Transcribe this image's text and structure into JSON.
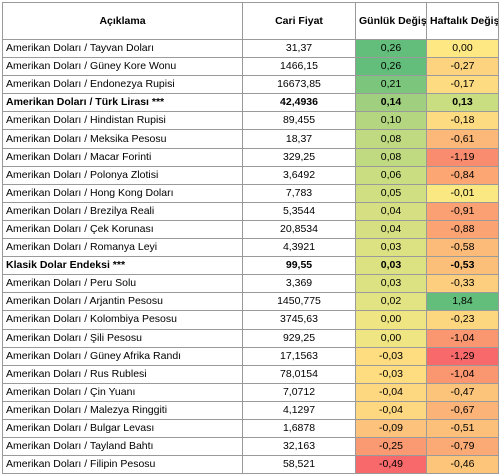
{
  "headers": [
    "Açıklama",
    "Cari Fiyat",
    "Günlük Değişim (%)",
    "Haftalık Değişim (%)"
  ],
  "rows": [
    {
      "name": "Amerikan Doları / Tayvan Doları",
      "price": "31,37",
      "daily": "0,26",
      "weekly": "0,00",
      "bold": false,
      "daily_color": "#63be7b",
      "weekly_color": "#fde883"
    },
    {
      "name": "Amerikan Doları / Güney Kore Wonu",
      "price": "1466,15",
      "daily": "0,26",
      "weekly": "-0,27",
      "bold": false,
      "daily_color": "#63be7b",
      "weekly_color": "#fdd37f"
    },
    {
      "name": "Amerikan Doları / Endonezya Rupisi",
      "price": "16673,85",
      "daily": "0,21",
      "weekly": "-0,17",
      "bold": false,
      "daily_color": "#7bc57d",
      "weekly_color": "#fddb81"
    },
    {
      "name": "Amerikan Doları / Türk Lirası ***",
      "price": "42,4936",
      "daily": "0,14",
      "weekly": "0,13",
      "bold": true,
      "daily_color": "#a0d07f",
      "weekly_color": "#c9dd81"
    },
    {
      "name": "Amerikan Doları / Hindistan Rupisi",
      "price": "89,455",
      "daily": "0,10",
      "weekly": "-0,18",
      "bold": false,
      "daily_color": "#b5d680",
      "weekly_color": "#fddb81"
    },
    {
      "name": "Amerikan Doları / Meksika Pesosu",
      "price": "18,37",
      "daily": "0,08",
      "weekly": "-0,61",
      "bold": false,
      "daily_color": "#c0da81",
      "weekly_color": "#fcb878"
    },
    {
      "name": "Amerikan Doları / Macar Forinti",
      "price": "329,25",
      "daily": "0,08",
      "weekly": "-1,19",
      "bold": false,
      "daily_color": "#c0da81",
      "weekly_color": "#f98b6e"
    },
    {
      "name": "Amerikan Doları / Polonya Zlotisi",
      "price": "3,6492",
      "daily": "0,06",
      "weekly": "-0,84",
      "bold": false,
      "daily_color": "#cadd81",
      "weekly_color": "#fba673"
    },
    {
      "name": "Amerikan Doları / Hong Kong Doları",
      "price": "7,783",
      "daily": "0,05",
      "weekly": "-0,01",
      "bold": false,
      "daily_color": "#d0df82",
      "weekly_color": "#fae883"
    },
    {
      "name": "Amerikan Doları / Brezilya Reali",
      "price": "5,3544",
      "daily": "0,04",
      "weekly": "-0,91",
      "bold": false,
      "daily_color": "#d6e082",
      "weekly_color": "#fba073"
    },
    {
      "name": "Amerikan Doları / Çek Korunası",
      "price": "20,8534",
      "daily": "0,04",
      "weekly": "-0,88",
      "bold": false,
      "daily_color": "#d6e082",
      "weekly_color": "#fba373"
    },
    {
      "name": "Amerikan Doları / Romanya Leyi",
      "price": "4,3921",
      "daily": "0,03",
      "weekly": "-0,58",
      "bold": false,
      "daily_color": "#dce182",
      "weekly_color": "#fcbb79"
    },
    {
      "name": "Klasik Dolar Endeksi ***",
      "price": "99,55",
      "daily": "0,03",
      "weekly": "-0,53",
      "bold": true,
      "daily_color": "#dce182",
      "weekly_color": "#fcbf79"
    },
    {
      "name": "Amerikan Doları / Peru Solu",
      "price": "3,369",
      "daily": "0,03",
      "weekly": "-0,33",
      "bold": false,
      "daily_color": "#dce182",
      "weekly_color": "#fdce7e"
    },
    {
      "name": "Amerikan Doları / Arjantin Pesosu",
      "price": "1450,775",
      "daily": "0,02",
      "weekly": "1,84",
      "bold": false,
      "daily_color": "#e2e382",
      "weekly_color": "#63be7b"
    },
    {
      "name": "Amerikan Doları / Kolombiya Pesosu",
      "price": "3745,63",
      "daily": "0,00",
      "weekly": "-0,23",
      "bold": false,
      "daily_color": "#efe683",
      "weekly_color": "#fdd680"
    },
    {
      "name": "Amerikan Doları / Şili Pesosu",
      "price": "929,25",
      "daily": "0,00",
      "weekly": "-1,04",
      "bold": false,
      "daily_color": "#efe683",
      "weekly_color": "#fa9770"
    },
    {
      "name": "Amerikan Doları / Güney Afrika Randı",
      "price": "17,1563",
      "daily": "-0,03",
      "weekly": "-1,29",
      "bold": false,
      "daily_color": "#fedd81",
      "weekly_color": "#f8696b"
    },
    {
      "name": "Amerikan Doları / Rus Rublesi",
      "price": "78,0154",
      "daily": "-0,03",
      "weekly": "-1,04",
      "bold": false,
      "daily_color": "#fedd81",
      "weekly_color": "#fa9770"
    },
    {
      "name": "Amerikan Doları / Çin Yuanı",
      "price": "7,0712",
      "daily": "-0,04",
      "weekly": "-0,47",
      "bold": false,
      "daily_color": "#fed881",
      "weekly_color": "#fcc47a"
    },
    {
      "name": "Amerikan Doları / Malezya Ringgiti",
      "price": "4,1297",
      "daily": "-0,04",
      "weekly": "-0,67",
      "bold": false,
      "daily_color": "#fed881",
      "weekly_color": "#fcb377"
    },
    {
      "name": "Amerikan Doları / Bulgar Levası",
      "price": "1,6878",
      "daily": "-0,09",
      "weekly": "-0,51",
      "bold": false,
      "daily_color": "#fdc27c",
      "weekly_color": "#fcc07a"
    },
    {
      "name": "Amerikan Doları / Tayland Bahtı",
      "price": "32,163",
      "daily": "-0,25",
      "weekly": "-0,79",
      "bold": false,
      "daily_color": "#fa9a73",
      "weekly_color": "#fbaa75"
    },
    {
      "name": "Amerikan Doları / Filipin Pesosu",
      "price": "58,521",
      "daily": "-0,49",
      "weekly": "-0,46",
      "bold": false,
      "daily_color": "#f8696b",
      "weekly_color": "#fcc57a"
    }
  ]
}
